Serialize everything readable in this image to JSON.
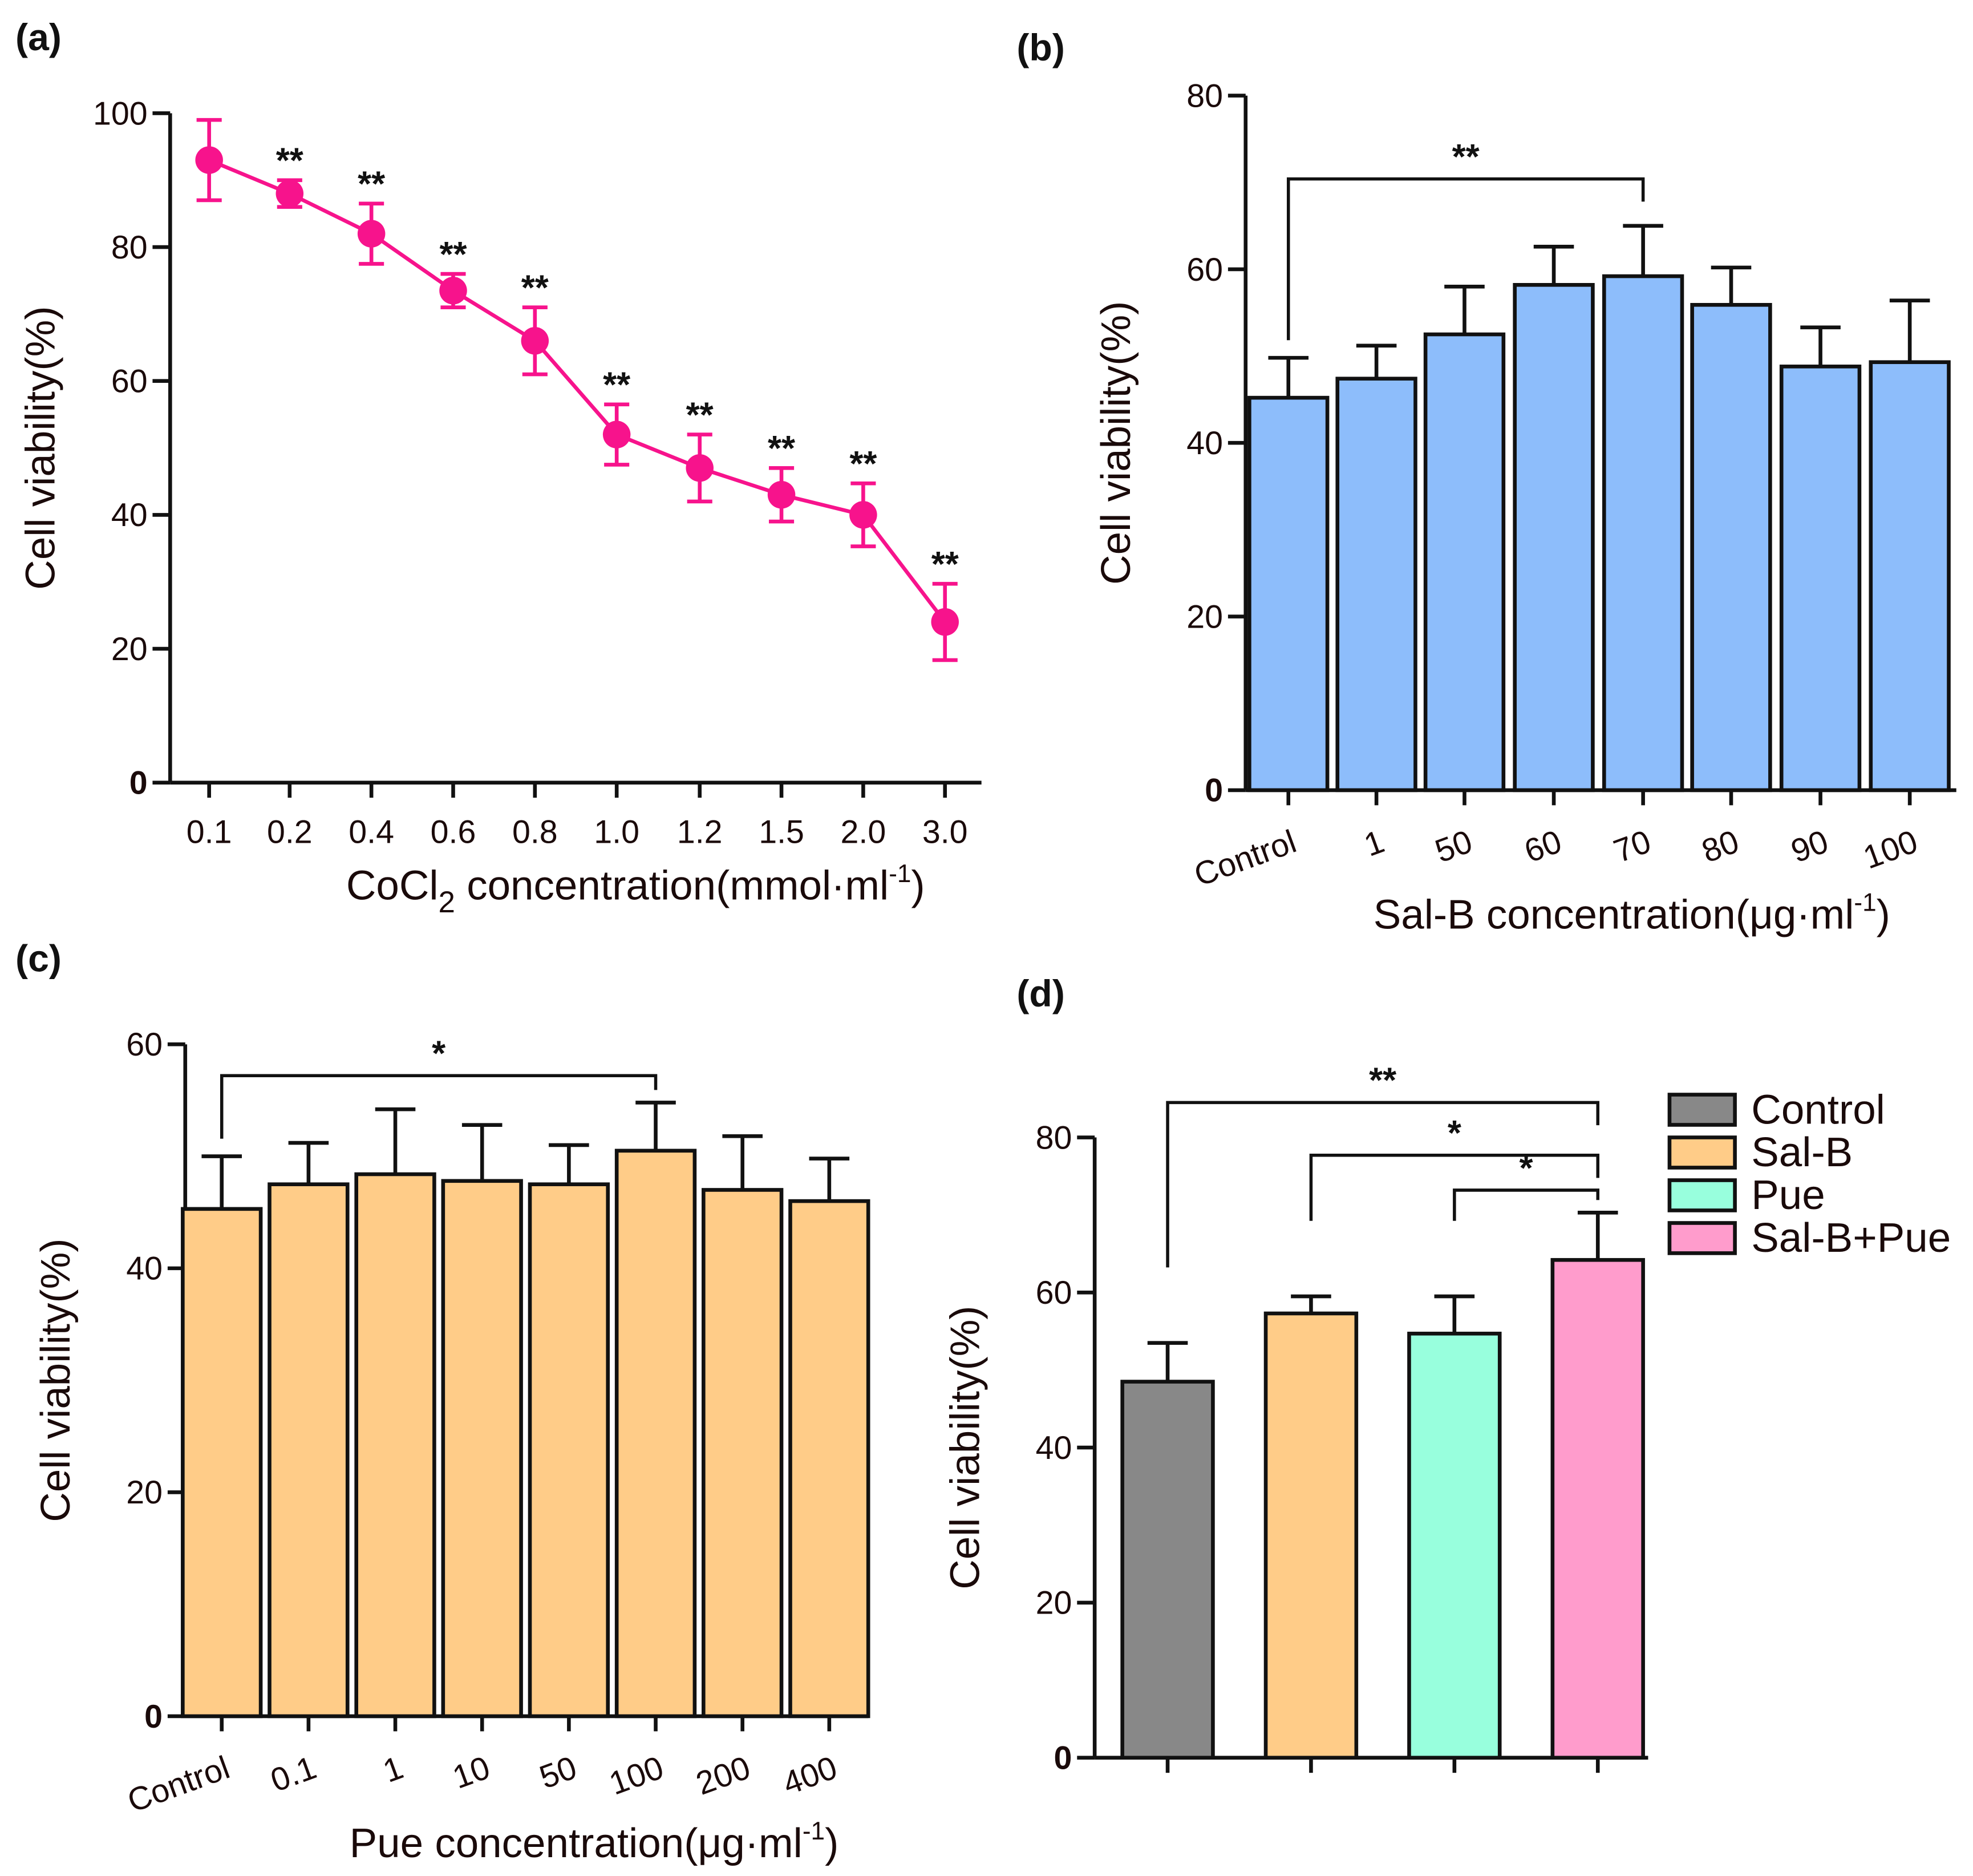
{
  "chart_data": [
    {
      "panel": "(a)",
      "type": "line",
      "x_categories": [
        "0.1",
        "0.2",
        "0.4",
        "0.6",
        "0.8",
        "1.0",
        "1.2",
        "1.5",
        "2.0",
        "3.0"
      ],
      "values": [
        93,
        88,
        82,
        73.5,
        66,
        52,
        47,
        43,
        40,
        24
      ],
      "errors": [
        6,
        2,
        4.5,
        2.5,
        5,
        4.5,
        5,
        4,
        4.7,
        5.7
      ],
      "significance": [
        "",
        "**",
        "**",
        "**",
        "**",
        "**",
        "**",
        "**",
        "**",
        "**"
      ],
      "xlabel": "CoCl2 concentration(mmol·ml-1)",
      "xlabel_parts": {
        "a": "CoCl",
        "sub": "2",
        "b": " concentration(mmol·ml",
        "sup": "-1",
        "c": ")"
      },
      "ylabel": "Cell viability(%)",
      "ylim": [
        0,
        100
      ],
      "yticks": [
        "0",
        "20",
        "40",
        "60",
        "80",
        "100"
      ],
      "color": "#F7138C"
    },
    {
      "panel": "(b)",
      "type": "bar",
      "categories": [
        "Control",
        "1",
        "50",
        "60",
        "70",
        "80",
        "90",
        "100"
      ],
      "values": [
        45.2,
        47.4,
        52.5,
        58.2,
        59.2,
        55.9,
        48.8,
        49.3
      ],
      "error_top": [
        49.8,
        51.2,
        58,
        62.6,
        65,
        60.2,
        53.3,
        56.4
      ],
      "brackets": [
        {
          "from": 0,
          "to": 4,
          "level": 70.4,
          "label": "**"
        }
      ],
      "xlabel_parts": {
        "b": "Sal-B concentration(μg·ml",
        "sup": "-1",
        "c": ")"
      },
      "ylabel": "Cell viability(%)",
      "ylim": [
        0,
        80
      ],
      "yticks": [
        "0",
        "20",
        "40",
        "60",
        "80"
      ],
      "color": "#8DBDFB"
    },
    {
      "panel": "(c)",
      "type": "bar",
      "categories": [
        "Control",
        "0.1",
        "1",
        "10",
        "50",
        "100",
        "200",
        "400"
      ],
      "values": [
        45.3,
        47.5,
        48.4,
        47.8,
        47.5,
        50.5,
        47,
        46
      ],
      "error_top": [
        50,
        51.2,
        54.2,
        52.8,
        51,
        54.8,
        51.8,
        49.8
      ],
      "brackets": [
        {
          "from": 0,
          "to": 5,
          "level": 57.2,
          "label": "*"
        }
      ],
      "xlabel_parts": {
        "b": "Pue concentration(μg·ml",
        "sup": "-1",
        "c": ")"
      },
      "ylabel": "Cell viability(%)",
      "ylim": [
        0,
        60
      ],
      "yticks": [
        "0",
        "20",
        "40",
        "60"
      ],
      "color": "#FFCC88"
    },
    {
      "panel": "(d)",
      "type": "bar",
      "categories": [
        "Control",
        "Sal-B",
        "Pue",
        "Sal-B+Pue"
      ],
      "values": [
        48.5,
        57.3,
        54.7,
        64.2
      ],
      "error_top": [
        53.5,
        59.5,
        59.5,
        70.3
      ],
      "colors": [
        "#888888",
        "#FFCC88",
        "#98FFDD",
        "#FF9CCC"
      ],
      "brackets": [
        {
          "from": 0,
          "to": 3,
          "level": 84.5,
          "label": "**"
        },
        {
          "from": 1,
          "to": 3,
          "level": 77.7,
          "label": "*"
        },
        {
          "from": 2,
          "to": 3,
          "level": 73.2,
          "label": "*"
        }
      ],
      "legend": [
        "Control",
        "Sal-B",
        "Pue",
        "Sal-B+Pue"
      ],
      "legend_position": "right",
      "ylabel": "Cell viability(%)",
      "ylim": [
        0,
        80
      ],
      "yticks": [
        "0",
        "20",
        "40",
        "60",
        "80"
      ]
    }
  ]
}
